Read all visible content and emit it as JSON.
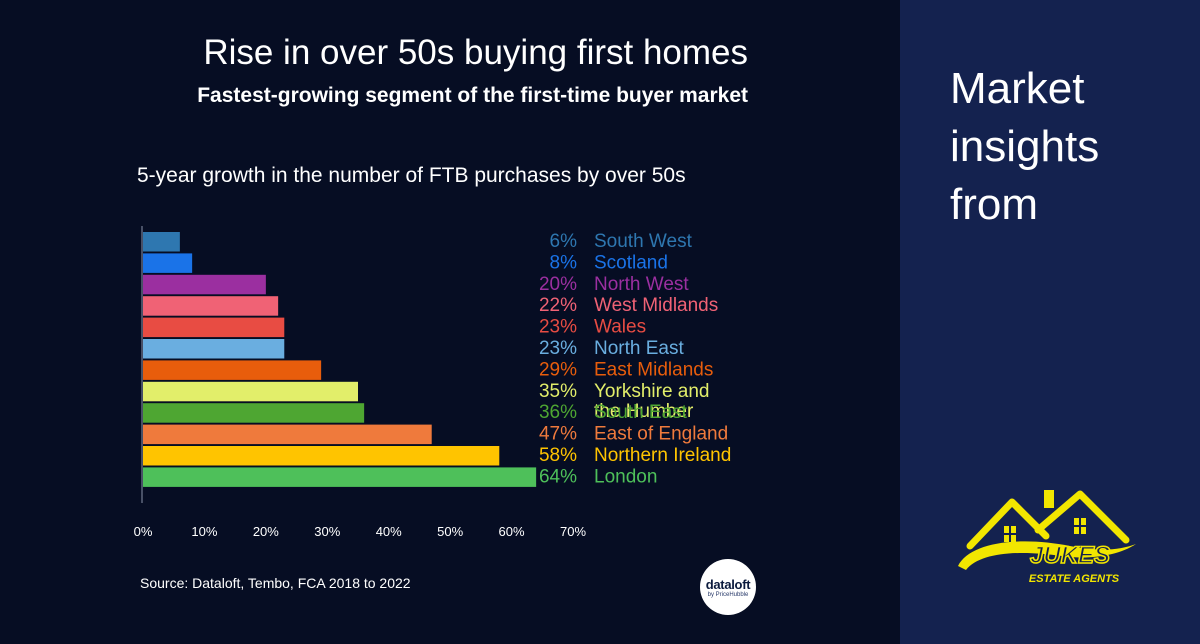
{
  "title": "Rise in over 50s buying first homes",
  "subtitle": "Fastest-growing segment of the first-time buyer market",
  "chart_heading": "5-year growth in the number of FTB purchases by over 50s",
  "source": "Source: Dataloft, Tembo, FCA 2018 to 2022",
  "brand": {
    "name": "dataloft",
    "tagline": "by PriceHubble"
  },
  "side": {
    "title_lines": [
      "Market",
      "insights",
      "from"
    ]
  },
  "logo": {
    "name": "JUKES",
    "tagline": "ESTATE AGENTS",
    "color": "#f2e600"
  },
  "colors": {
    "background": "#060d23",
    "side_panel": "#14224f",
    "text": "#ffffff"
  },
  "chart_data": {
    "type": "bar",
    "orientation": "horizontal",
    "title": "5-year growth in the number of FTB purchases by over 50s",
    "xlabel": "",
    "ylabel": "",
    "xlim": [
      0,
      70
    ],
    "xticks": [
      "0%",
      "10%",
      "20%",
      "30%",
      "40%",
      "50%",
      "60%",
      "70%"
    ],
    "grid": false,
    "series": [
      {
        "category": "South West",
        "label_lines": [
          "South West"
        ],
        "value": 6,
        "value_label": "6%",
        "color": "#2e77b0"
      },
      {
        "category": "Scotland",
        "label_lines": [
          "Scotland"
        ],
        "value": 8,
        "value_label": "8%",
        "color": "#1a73e8"
      },
      {
        "category": "North West",
        "label_lines": [
          "North West"
        ],
        "value": 20,
        "value_label": "20%",
        "color": "#9b2fa0"
      },
      {
        "category": "West Midlands",
        "label_lines": [
          "West Midlands"
        ],
        "value": 22,
        "value_label": "22%",
        "color": "#f06275"
      },
      {
        "category": "Wales",
        "label_lines": [
          "Wales"
        ],
        "value": 23,
        "value_label": "23%",
        "color": "#e84c43"
      },
      {
        "category": "North East",
        "label_lines": [
          "North East"
        ],
        "value": 23,
        "value_label": "23%",
        "color": "#6aaee0"
      },
      {
        "category": "East Midlands",
        "label_lines": [
          "East Midlands"
        ],
        "value": 29,
        "value_label": "29%",
        "color": "#e85d0c"
      },
      {
        "category": "Yorkshire and the Humber",
        "label_lines": [
          "Yorkshire and",
          "the Humber"
        ],
        "value": 35,
        "value_label": "35%",
        "color": "#e2ee6a"
      },
      {
        "category": "South East",
        "label_lines": [
          "South East"
        ],
        "value": 36,
        "value_label": "36%",
        "color": "#4ea632"
      },
      {
        "category": "East of England",
        "label_lines": [
          "East of England"
        ],
        "value": 47,
        "value_label": "47%",
        "color": "#ef7a3c"
      },
      {
        "category": "Northern Ireland",
        "label_lines": [
          "Northern Ireland"
        ],
        "value": 58,
        "value_label": "58%",
        "color": "#ffc400"
      },
      {
        "category": "London",
        "label_lines": [
          "London"
        ],
        "value": 64,
        "value_label": "64%",
        "color": "#4ec05a"
      }
    ]
  }
}
